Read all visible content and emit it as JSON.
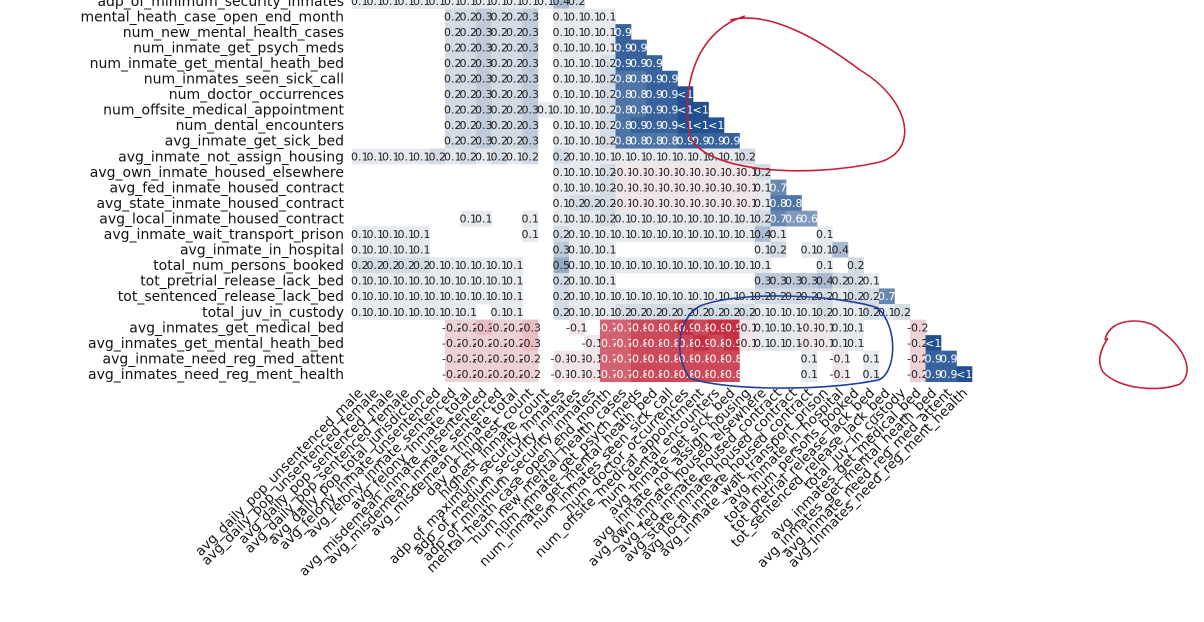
{
  "chart_data": {
    "type": "heatmap",
    "title": "",
    "xlabel": "",
    "ylabel": "",
    "color_scale": {
      "negative": "#c0172c",
      "neutral": "#f5f5f5",
      "positive": "#1f4f8f"
    },
    "annotation_colors": {
      "red": "#c41e3a",
      "blue": "#1f3f9a"
    },
    "x_labels": [
      "avg_daily_pop_unsentenced_male",
      "avg_daily_pop_unsentenced_female",
      "avg_daily_pop_sentenced_male",
      "avg_daily_pop_sentenced_female",
      "avg_daily_pop_total_jurisdiction",
      "avg_felony_inmate_unsentenced",
      "avg_felony_inmate_sentenced",
      "avg_felony_inmate_total",
      "avg_misdemean_inmate_unsentenced",
      "avg_misdemean_inmate_sentenced",
      "avg_misdemean_inmate_total",
      "day_of_highest_count",
      "highest_inmate_count",
      "adp_of_maximum_security_inmates",
      "adp_of_medium_security_inmates",
      "adp_of_minimum_security_inmates",
      "mental_heath_case_open_end_month",
      "num_new_mental_health_cases",
      "num_inmate_get_psych_meds",
      "num_inmate_get_mental_heath_bed",
      "num_inmates_seen_sick_call",
      "num_doctor_occurrences",
      "num_offsite_medical_appointment",
      "num_dental_encounters",
      "avg_inmate_get_sick_bed",
      "avg_inmate_not_assign_housing",
      "avg_own_inmate_housed_elsewhere",
      "avg_fed_inmate_housed_contract",
      "avg_state_inmate_housed_contract",
      "avg_local_inmate_housed_contract",
      "avg_inmate_wait_transport_prison",
      "avg_inmate_in_hospital",
      "total_num_persons_booked",
      "tot_pretrial_release_lack_bed",
      "tot_sentenced_release_lack_bed",
      "total_juv_in_custody",
      "avg_inmates_get_medical_bed",
      "avg_inmates_get_mental_heath_bed",
      "avg_inmate_need_reg_med_attent",
      "avg_inmates_need_reg_ment_health"
    ],
    "y_labels": [
      "adp_of_minimum_security_inmates",
      "mental_heath_case_open_end_month",
      "num_new_mental_health_cases",
      "num_inmate_get_psych_meds",
      "num_inmate_get_mental_heath_bed",
      "num_inmates_seen_sick_call",
      "num_doctor_occurrences",
      "num_offsite_medical_appointment",
      "num_dental_encounters",
      "avg_inmate_get_sick_bed",
      "avg_inmate_not_assign_housing",
      "avg_own_inmate_housed_elsewhere",
      "avg_fed_inmate_housed_contract",
      "avg_state_inmate_housed_contract",
      "avg_local_inmate_housed_contract",
      "avg_inmate_wait_transport_prison",
      "avg_inmate_in_hospital",
      "total_num_persons_booked",
      "tot_pretrial_release_lack_bed",
      "tot_sentenced_release_lack_bed",
      "total_juv_in_custody",
      "avg_inmates_get_medical_bed",
      "avg_inmates_get_mental_heath_bed",
      "avg_inmate_need_reg_med_attent",
      "avg_inmates_need_reg_ment_health"
    ],
    "rows": [
      {
        "values": [
          0.1,
          0.1,
          0.1,
          0.1,
          0.1,
          0.1,
          0.1,
          0.1,
          0.1,
          0.1,
          0.1,
          0.1,
          0.1,
          0.4,
          0.2
        ]
      },
      {
        "values": [
          0,
          0,
          0,
          0,
          0,
          0,
          0.2,
          0.2,
          0.3,
          0.2,
          0.2,
          0.3,
          0,
          0.1,
          0.1,
          0.1,
          0.1
        ]
      },
      {
        "values": [
          0,
          0,
          0,
          0,
          0,
          0,
          0.2,
          0.2,
          0.3,
          0.2,
          0.2,
          0.3,
          0,
          0.1,
          0.1,
          0.1,
          0.1,
          0.9
        ]
      },
      {
        "values": [
          0,
          0,
          0,
          0,
          0,
          0,
          0.2,
          0.2,
          0.3,
          0.2,
          0.2,
          0.3,
          0,
          0.1,
          0.1,
          0.1,
          0.1,
          0.9,
          0.9
        ]
      },
      {
        "values": [
          0,
          0,
          0,
          0,
          0,
          0,
          0.2,
          0.2,
          0.3,
          0.2,
          0.2,
          0.3,
          0,
          0.1,
          0.1,
          0.1,
          0.2,
          0.9,
          0.9,
          0.9
        ]
      },
      {
        "values": [
          0,
          0,
          0,
          0,
          0,
          0,
          0.2,
          0.2,
          0.3,
          0.2,
          0.2,
          0.3,
          0,
          0.1,
          0.1,
          0.1,
          0.2,
          0.8,
          0.8,
          0.9,
          0.9
        ]
      },
      {
        "values": [
          0,
          0,
          0,
          0,
          0,
          0,
          0.2,
          0.2,
          0.3,
          0.2,
          0.2,
          0.3,
          0,
          0.1,
          0.1,
          0.1,
          0.2,
          0.8,
          0.8,
          0.9,
          0.9,
          0.99
        ]
      },
      {
        "values": [
          0,
          0,
          0,
          0,
          0,
          0,
          0.2,
          0.2,
          0.3,
          0.2,
          0.2,
          0.3,
          0.1,
          0.1,
          0.1,
          0.1,
          0.2,
          0.8,
          0.8,
          0.9,
          0.9,
          0.99,
          0.99
        ]
      },
      {
        "values": [
          0,
          0,
          0,
          0,
          0,
          0,
          0.2,
          0.2,
          0.3,
          0.2,
          0.2,
          0.3,
          0,
          0.1,
          0.1,
          0.1,
          0.2,
          0.8,
          0.9,
          0.9,
          0.9,
          0.99,
          0.99,
          0.99
        ]
      },
      {
        "values": [
          0,
          0,
          0,
          0,
          0,
          0,
          0.2,
          0.2,
          0.3,
          0.2,
          0.2,
          0.3,
          0,
          0.1,
          0.1,
          0.1,
          0.2,
          0.8,
          0.8,
          0.8,
          0.8,
          0.9,
          0.9,
          0.9,
          0.9
        ]
      },
      {
        "values": [
          0.1,
          0.1,
          0.1,
          0.1,
          0.1,
          0.2,
          0.1,
          0.2,
          0.1,
          0.2,
          0.1,
          0.2,
          0,
          0.2,
          0.1,
          0.1,
          0.1,
          0.1,
          0.1,
          0.1,
          0.1,
          0.1,
          0.1,
          0.1,
          0.1,
          0.2
        ]
      },
      {
        "values": [
          0,
          0,
          0,
          0,
          0,
          0,
          0,
          0,
          0,
          0,
          0,
          0,
          0,
          0.1,
          0.1,
          0.1,
          0.2,
          -0.1,
          -0.1,
          -0.1,
          -0.1,
          -0.1,
          -0.1,
          -0.1,
          -0.1,
          -0.1,
          0.2
        ]
      },
      {
        "values": [
          0,
          0,
          0,
          0,
          0,
          0,
          0,
          0,
          0,
          0,
          0,
          0,
          0,
          0.1,
          0.1,
          0.1,
          0.2,
          -0.1,
          -0.1,
          -0.1,
          -0.1,
          -0.1,
          -0.1,
          -0.1,
          -0.1,
          -0.1,
          0.1,
          0.7
        ]
      },
      {
        "values": [
          0,
          0,
          0,
          0,
          0,
          0,
          0,
          0,
          0,
          0,
          0,
          0,
          0,
          0.1,
          0.2,
          0.2,
          0.2,
          -0.1,
          -0.1,
          -0.1,
          -0.1,
          -0.1,
          -0.1,
          -0.1,
          -0.1,
          -0.1,
          0.1,
          0.8,
          0.8
        ]
      },
      {
        "values": [
          0,
          0,
          0,
          0,
          0,
          0,
          0,
          0.1,
          0.1,
          0,
          0,
          0.1,
          0,
          0.1,
          0.1,
          0.1,
          0.2,
          0.1,
          0.1,
          0.1,
          0.1,
          0.1,
          0.1,
          0.1,
          0.1,
          0.1,
          0.2,
          0.7,
          0.6,
          0.6
        ]
      },
      {
        "values": [
          0.1,
          0.1,
          0.1,
          0.1,
          0.1,
          0,
          0,
          0,
          0,
          0,
          0,
          0.1,
          0,
          0.2,
          0.1,
          0.1,
          0.1,
          0.1,
          0.1,
          0.1,
          0.1,
          0.1,
          0.1,
          0.1,
          0.1,
          0.1,
          0.4,
          0.1,
          0,
          0,
          0.1
        ]
      },
      {
        "values": [
          0.1,
          0.1,
          0.1,
          0.1,
          0.1,
          0,
          0,
          0,
          0,
          0,
          0,
          0,
          0,
          0.3,
          0.1,
          0.1,
          0.1,
          0,
          0,
          0,
          0,
          0,
          0,
          0,
          0,
          0,
          0.1,
          0.2,
          0,
          0.1,
          0.1,
          0.4
        ]
      },
      {
        "values": [
          0.2,
          0.2,
          0.2,
          0.2,
          0.2,
          0.1,
          0.1,
          0.1,
          0.1,
          0.1,
          0.1,
          0,
          0,
          0.5,
          0.1,
          0.1,
          0.1,
          0.1,
          0.1,
          0.1,
          0.1,
          0.1,
          0.1,
          0.1,
          0.1,
          0.1,
          0.1,
          0,
          0,
          0,
          0.1,
          0,
          0.2
        ]
      },
      {
        "values": [
          0.1,
          0.1,
          0.1,
          0.1,
          0.1,
          0.1,
          0.1,
          0.1,
          0.1,
          0.1,
          0.1,
          0,
          0,
          0.2,
          0.1,
          0.1,
          0.1,
          0,
          0,
          0,
          0,
          0,
          0,
          0,
          0,
          0,
          0.3,
          0.3,
          0.3,
          0.3,
          0.4,
          0.2,
          0.2,
          0.1
        ]
      },
      {
        "values": [
          0.1,
          0.1,
          0.1,
          0.1,
          0.1,
          0.1,
          0.1,
          0.1,
          0.1,
          0.1,
          0.1,
          0,
          0,
          0.2,
          0.1,
          0.1,
          0.1,
          0.1,
          0.1,
          0.1,
          0.1,
          0.1,
          0.1,
          0.1,
          0.1,
          0.1,
          0.2,
          0.2,
          0.2,
          0.2,
          0.2,
          0.1,
          0.2,
          0.2,
          0.7
        ]
      },
      {
        "values": [
          0.1,
          0.1,
          0.1,
          0.1,
          0.1,
          0.1,
          0.1,
          0.1,
          0,
          0.1,
          0.1,
          0,
          0,
          0.2,
          0.1,
          0.1,
          0.1,
          0.2,
          0.2,
          0.2,
          0.2,
          0.2,
          0.2,
          0.2,
          0.2,
          0.2,
          0.1,
          0.1,
          0.1,
          0.1,
          0.2,
          0.1,
          0.1,
          0.2,
          0.1,
          0.2
        ]
      },
      {
        "values": [
          0,
          0,
          0,
          0,
          0,
          0,
          -0.2,
          -0.2,
          -0.3,
          -0.2,
          -0.2,
          -0.3,
          0,
          0,
          -0.1,
          0,
          -0.7,
          -0.7,
          -0.8,
          -0.8,
          -0.8,
          -0.9,
          -0.8,
          -0.9,
          -0.9,
          -0.1,
          0.1,
          0.1,
          0.1,
          -0.1,
          -0.1,
          0.1,
          0.1,
          0,
          0,
          0,
          -0.2
        ]
      },
      {
        "values": [
          0,
          0,
          0,
          0,
          0,
          0,
          -0.2,
          -0.2,
          -0.2,
          -0.2,
          -0.2,
          -0.3,
          0,
          0,
          0,
          -0.1,
          -0.7,
          -0.7,
          -0.8,
          -0.8,
          -0.8,
          -0.8,
          -0.9,
          -0.8,
          -0.9,
          -0.1,
          0.1,
          0.1,
          0.1,
          -0.1,
          -0.1,
          0.1,
          0.1,
          0,
          0,
          0,
          -0.2,
          0.99
        ]
      },
      {
        "values": [
          0,
          0,
          0,
          0,
          0,
          0,
          -0.2,
          -0.2,
          -0.2,
          -0.2,
          -0.2,
          -0.2,
          0,
          -0.1,
          -0.1,
          -0.1,
          -0.7,
          -0.7,
          -0.8,
          -0.8,
          -0.8,
          -0.8,
          -0.8,
          -0.8,
          -0.8,
          0,
          0,
          0,
          0,
          0.1,
          0,
          -0.1,
          0,
          0.1,
          0,
          0,
          -0.2,
          0.9,
          0.9
        ]
      },
      {
        "values": [
          0,
          0,
          0,
          0,
          0,
          0,
          -0.2,
          -0.2,
          -0.2,
          -0.2,
          -0.2,
          -0.2,
          0,
          -0.1,
          -0.1,
          -0.1,
          -0.7,
          -0.7,
          -0.8,
          -0.8,
          -0.8,
          -0.8,
          -0.8,
          -0.8,
          -0.8,
          0,
          0,
          0,
          0,
          0.1,
          0,
          -0.1,
          0,
          0.1,
          0,
          0,
          -0.2,
          0.9,
          0.9,
          0.99
        ]
      }
    ],
    "near_one_label": "<1"
  }
}
